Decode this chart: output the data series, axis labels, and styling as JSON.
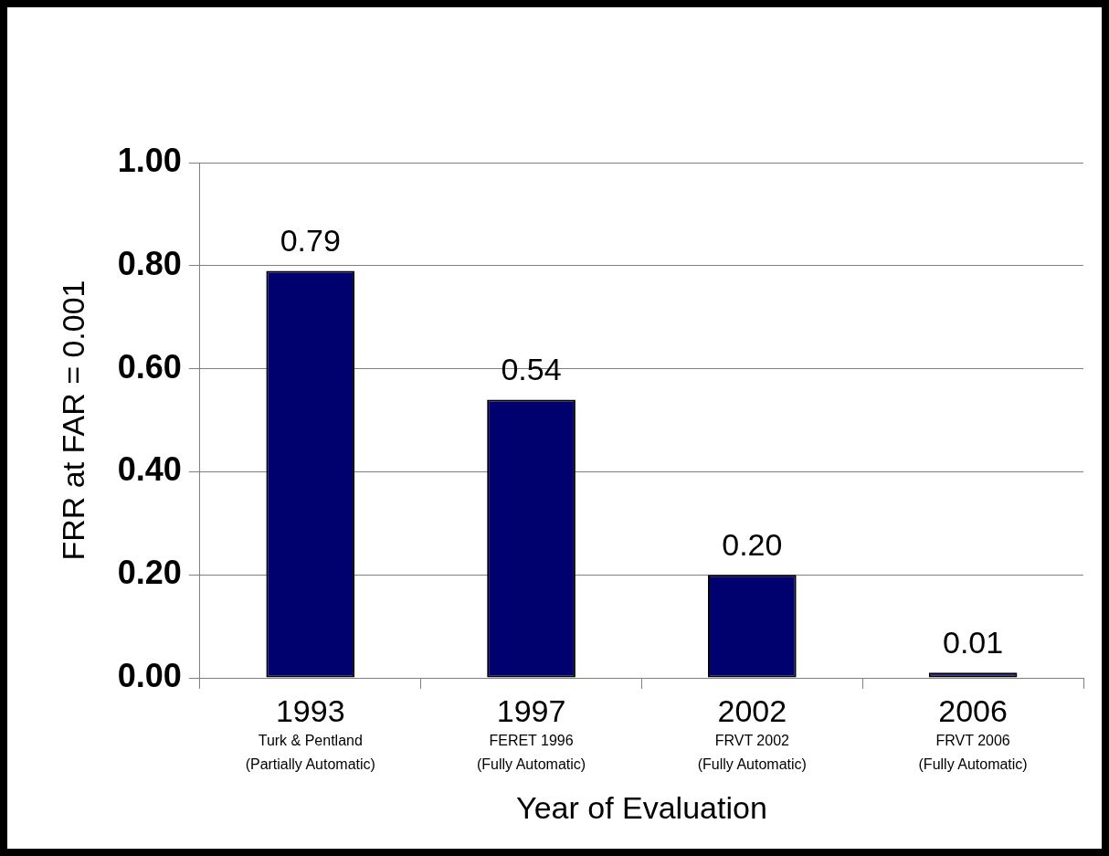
{
  "chart_data": {
    "type": "bar",
    "xlabel": "Year of Evaluation",
    "ylabel": "FRR at FAR = 0.001",
    "categories": [
      "1993\nTurk & Pentland\n(Partially Automatic)",
      "1997\nFERET 1996\n(Fully Automatic)",
      "2002\nFRVT 2002\n(Fully Automatic)",
      "2006\nFRVT 2006\n(Fully Automatic)"
    ],
    "values": [
      0.79,
      0.54,
      0.2,
      0.01
    ],
    "color": "#00006e",
    "ylim": [
      0,
      1
    ],
    "yticks": [
      {
        "value": 0,
        "label": "0.00"
      },
      {
        "value": 0.2,
        "label": "0.20"
      },
      {
        "value": 0.4,
        "label": "0.40"
      },
      {
        "value": 0.6,
        "label": "0.60"
      },
      {
        "value": 0.8,
        "label": "0.80"
      },
      {
        "value": 1,
        "label": "1.00"
      }
    ],
    "value_labels": [
      "0.79",
      "0.54",
      "0.20",
      "0.01"
    ],
    "grid": "y",
    "legend": false
  }
}
